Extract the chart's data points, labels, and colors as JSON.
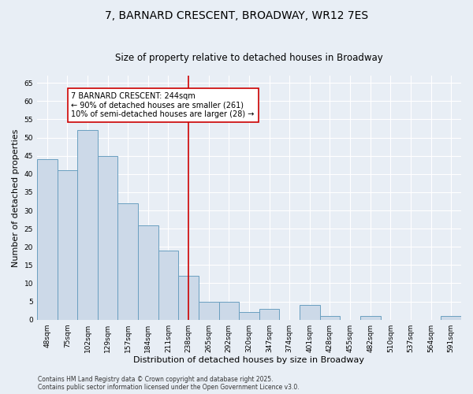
{
  "title": "7, BARNARD CRESCENT, BROADWAY, WR12 7ES",
  "subtitle": "Size of property relative to detached houses in Broadway",
  "xlabel": "Distribution of detached houses by size in Broadway",
  "ylabel": "Number of detached properties",
  "categories": [
    "48sqm",
    "75sqm",
    "102sqm",
    "129sqm",
    "157sqm",
    "184sqm",
    "211sqm",
    "238sqm",
    "265sqm",
    "292sqm",
    "320sqm",
    "347sqm",
    "374sqm",
    "401sqm",
    "428sqm",
    "455sqm",
    "482sqm",
    "510sqm",
    "537sqm",
    "564sqm",
    "591sqm"
  ],
  "values": [
    44,
    41,
    52,
    45,
    32,
    26,
    19,
    12,
    5,
    5,
    2,
    3,
    0,
    4,
    1,
    0,
    1,
    0,
    0,
    0,
    1
  ],
  "bar_color": "#ccd9e8",
  "bar_edge_color": "#6a9fc0",
  "background_color": "#e8eef5",
  "grid_color": "#ffffff",
  "vline_x_idx": 7,
  "vline_color": "#cc0000",
  "ylim": [
    0,
    67
  ],
  "yticks": [
    0,
    5,
    10,
    15,
    20,
    25,
    30,
    35,
    40,
    45,
    50,
    55,
    60,
    65
  ],
  "annotation_text": "7 BARNARD CRESCENT: 244sqm\n← 90% of detached houses are smaller (261)\n10% of semi-detached houses are larger (28) →",
  "annotation_box_color": "#ffffff",
  "annotation_box_edge": "#cc0000",
  "footer_line1": "Contains HM Land Registry data © Crown copyright and database right 2025.",
  "footer_line2": "Contains public sector information licensed under the Open Government Licence v3.0.",
  "title_fontsize": 10,
  "subtitle_fontsize": 8.5,
  "tick_fontsize": 6.5,
  "label_fontsize": 8,
  "annot_fontsize": 7,
  "footer_fontsize": 5.5
}
